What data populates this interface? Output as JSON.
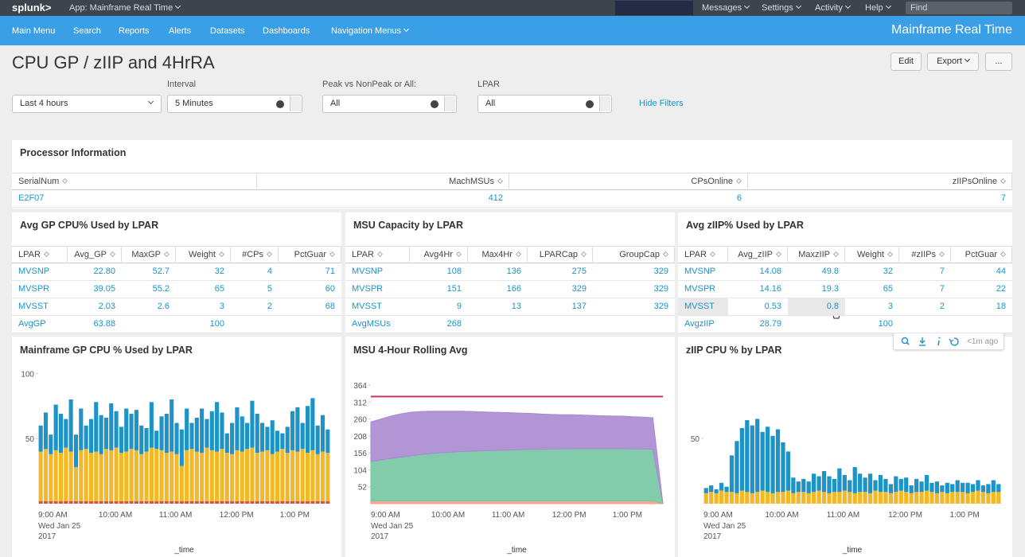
{
  "topbar": {
    "logo": "splunk>",
    "app": "App: Mainframe Real Time",
    "menus": [
      "Messages",
      "Settings",
      "Activity",
      "Help"
    ],
    "search_placeholder": "Find"
  },
  "navbar": {
    "items": [
      "Main Menu",
      "Search",
      "Reports",
      "Alerts",
      "Datasets",
      "Dashboards",
      "Navigation Menus"
    ],
    "app_title": "Mainframe Real Time"
  },
  "header": {
    "title": "CPU GP / zIIP and 4HrRA",
    "buttons": [
      "Edit",
      "Export",
      "..."
    ]
  },
  "filters": {
    "inputs": [
      {
        "value": "Last 4 hours"
      },
      {
        "label": "Interval",
        "value": "5 Minutes"
      },
      {
        "label": "Peak vs NonPeak or All:",
        "value": "All"
      },
      {
        "label": "LPAR",
        "value": "All"
      }
    ],
    "hide": "Hide Filters"
  },
  "processor_info": {
    "title": "Processor Information",
    "columns": [
      "SerialNum",
      "MachMSUs",
      "CPsOnline",
      "zIIPsOnline"
    ],
    "rows": [
      [
        "E2F07",
        "412",
        "6",
        "7"
      ]
    ]
  },
  "tables": [
    {
      "title": "Avg GP CPU% Used by LPAR",
      "columns": [
        "LPAR",
        "Avg_GP",
        "MaxGP",
        "Weight",
        "#CPs",
        "PctGuar"
      ],
      "rows": [
        [
          "MVSNP",
          "22.80",
          "52.7",
          "32",
          "4",
          "71"
        ],
        [
          "MVSPR",
          "39.05",
          "55.2",
          "65",
          "5",
          "60"
        ],
        [
          "MVSST",
          "2.03",
          "2.6",
          "3",
          "2",
          "68"
        ],
        [
          "AvgGP",
          "63.88",
          null,
          "100",
          null,
          null
        ]
      ]
    },
    {
      "title": "MSU Capacity by LPAR",
      "columns": [
        "LPAR",
        "Avg4Hr",
        "Max4Hr",
        "LPARCap",
        "GroupCap"
      ],
      "rows": [
        [
          "MVSNP",
          "108",
          "136",
          "275",
          "329"
        ],
        [
          "MVSPR",
          "151",
          "166",
          "329",
          "329"
        ],
        [
          "MVSST",
          "9",
          "13",
          "137",
          "329"
        ],
        [
          "AvgMSUs",
          "268",
          null,
          null,
          null
        ]
      ]
    },
    {
      "title": "Avg zIIP% Used by LPAR",
      "columns": [
        "LPAR",
        "Avg_zIIP",
        "MaxzIIP",
        "Weight",
        "#zIIPs",
        "PctGuar"
      ],
      "rows": [
        [
          "MVSNP",
          "14.08",
          "49.8",
          "32",
          "7",
          "44"
        ],
        [
          "MVSPR",
          "14.16",
          "19.3",
          "65",
          "7",
          "22"
        ],
        [
          "MVSST",
          "0.53",
          "0.8",
          "3",
          "2",
          "18"
        ],
        [
          "AvgzIIP",
          "28.79",
          null,
          "100",
          null,
          null
        ]
      ]
    }
  ],
  "table_toolbar": {
    "age": "<1m ago"
  },
  "chart_data": [
    {
      "type": "bar",
      "stacked": true,
      "title": "Mainframe GP CPU % Used by LPAR",
      "x_label": "_time",
      "categories": [
        "9:00 AM",
        null,
        null,
        null,
        null,
        null,
        null,
        null,
        null,
        null,
        null,
        null,
        "10:00 AM",
        null,
        null,
        null,
        null,
        null,
        null,
        null,
        null,
        null,
        null,
        null,
        "11:00 AM",
        null,
        null,
        null,
        null,
        null,
        null,
        null,
        null,
        null,
        null,
        null,
        "12:00 PM",
        null,
        null,
        null,
        null,
        null,
        null,
        null,
        null,
        null,
        null,
        null,
        "1:00 PM",
        null,
        null,
        null,
        null,
        null,
        null,
        null,
        null,
        null
      ],
      "x_sublabel": [
        "Wed Jan 25",
        "2017"
      ],
      "series": [
        {
          "color": "#d6563c",
          "values": [
            2,
            2,
            2,
            2,
            2,
            2,
            2,
            2,
            2,
            2,
            2,
            2,
            2,
            2,
            2,
            2,
            2,
            2,
            2,
            2,
            2,
            2,
            2,
            2,
            2,
            2,
            2,
            2,
            2,
            2,
            2,
            2,
            2,
            2,
            2,
            2,
            2,
            2,
            2,
            2,
            2,
            2,
            2,
            2,
            2,
            2,
            2,
            2,
            2,
            2,
            2,
            2,
            2,
            2,
            2,
            2,
            2,
            2
          ]
        },
        {
          "color": "#f2b827",
          "values": [
            38,
            40,
            36,
            39,
            37,
            41,
            38,
            26,
            39,
            40,
            37,
            38,
            36,
            40,
            39,
            41,
            37,
            38,
            40,
            39,
            36,
            38,
            41,
            40,
            39,
            37,
            38,
            36,
            27,
            39,
            40,
            38,
            37,
            41,
            39,
            38,
            40,
            37,
            36,
            39,
            38,
            40,
            41,
            37,
            38,
            39,
            36,
            38,
            40,
            37,
            39,
            38,
            40,
            37,
            39,
            36,
            38,
            37
          ]
        },
        {
          "color": "#1e93c6",
          "values": [
            20,
            28,
            15,
            35,
            30,
            22,
            40,
            25,
            32,
            18,
            26,
            38,
            30,
            24,
            36,
            28,
            20,
            33,
            27,
            31,
            22,
            18,
            35,
            14,
            26,
            30,
            40,
            24,
            28,
            32,
            20,
            26,
            34,
            22,
            30,
            38,
            28,
            15,
            24,
            33,
            27,
            20,
            36,
            30,
            22,
            18,
            26,
            16,
            12,
            20,
            30,
            34,
            20,
            36,
            40,
            22,
            28,
            18
          ]
        }
      ],
      "ylim": [
        0,
        102
      ],
      "yticks": [
        50,
        100
      ]
    },
    {
      "type": "area",
      "stacked": true,
      "title": "MSU 4-Hour Rolling Avg",
      "x_label": "_time",
      "categories": [
        "9:00 AM",
        null,
        null,
        null,
        null,
        null,
        "10:00 AM",
        null,
        null,
        null,
        null,
        null,
        "11:00 AM",
        null,
        null,
        null,
        null,
        null,
        "12:00 PM",
        null,
        null,
        null,
        null,
        null,
        "1:00 PM",
        null,
        null,
        null,
        null,
        null
      ],
      "x_sublabel": [
        "Wed Jan 25",
        "2017"
      ],
      "series": [
        {
          "color": "#f0a08a",
          "values": [
            9,
            9,
            9,
            9,
            9,
            9,
            9,
            9,
            9,
            9,
            9,
            9,
            9,
            9,
            9,
            9,
            9,
            9,
            9,
            9,
            9,
            9,
            9,
            9,
            9,
            9,
            9,
            9,
            9,
            0
          ]
        },
        {
          "color": "#74c7a2",
          "values": [
            120,
            125,
            130,
            134,
            138,
            142,
            145,
            147,
            149,
            151,
            152,
            153,
            154,
            155,
            156,
            157,
            158,
            158,
            159,
            159,
            160,
            160,
            160,
            160,
            160,
            160,
            159,
            159,
            158,
            0
          ]
        },
        {
          "color": "#a98ad0",
          "values": [
            122,
            126,
            130,
            133,
            134,
            132,
            130,
            128,
            126,
            124,
            122,
            120,
            118,
            116,
            114,
            112,
            110,
            108,
            106,
            105,
            104,
            103,
            102,
            101,
            100,
            100,
            99,
            98,
            97,
            0
          ]
        }
      ],
      "lines": [
        {
          "color": "#c3346b",
          "values": [
            329,
            329,
            329,
            329,
            329,
            329,
            329,
            329,
            329,
            329,
            329,
            329,
            329,
            329,
            329,
            329,
            329,
            329,
            329,
            329,
            329,
            329,
            329,
            329,
            329,
            329,
            329,
            329,
            329,
            329
          ]
        }
      ],
      "ylim": [
        0,
        364
      ],
      "yticks": [
        52,
        104,
        156,
        208,
        260,
        312,
        364
      ]
    },
    {
      "type": "bar",
      "stacked": true,
      "title": "zIIP CPU % by LPAR",
      "x_label": "_time",
      "categories": [
        "9:00 AM",
        null,
        null,
        null,
        null,
        null,
        null,
        null,
        null,
        null,
        null,
        null,
        "10:00 AM",
        null,
        null,
        null,
        null,
        null,
        null,
        null,
        null,
        null,
        null,
        null,
        "11:00 AM",
        null,
        null,
        null,
        null,
        null,
        null,
        null,
        null,
        null,
        null,
        null,
        "12:00 PM",
        null,
        null,
        null,
        null,
        null,
        null,
        null,
        null,
        null,
        null,
        null,
        "1:00 PM",
        null,
        null,
        null,
        null,
        null,
        null,
        null,
        null,
        null
      ],
      "x_sublabel": [
        "Wed Jan 25",
        "2017"
      ],
      "series": [
        {
          "color": "#f2b827",
          "values": [
            8,
            9,
            8,
            10,
            9,
            9,
            8,
            10,
            9,
            8,
            9,
            10,
            9,
            8,
            9,
            9,
            10,
            8,
            9,
            9,
            8,
            9,
            10,
            9,
            8,
            9,
            9,
            10,
            9,
            8,
            9,
            9,
            8,
            10,
            9,
            9,
            8,
            9,
            10,
            9,
            8,
            9,
            9,
            10,
            9,
            8,
            9,
            8,
            9,
            9,
            9,
            8,
            9,
            10,
            9,
            8,
            9,
            9
          ]
        },
        {
          "color": "#1e93c6",
          "values": [
            4,
            5,
            3,
            6,
            4,
            28,
            40,
            48,
            55,
            52,
            56,
            45,
            50,
            44,
            48,
            38,
            30,
            12,
            8,
            10,
            9,
            14,
            11,
            16,
            13,
            10,
            18,
            12,
            9,
            20,
            14,
            11,
            15,
            8,
            13,
            10,
            7,
            12,
            9,
            11,
            6,
            10,
            8,
            12,
            7,
            9,
            5,
            8,
            6,
            9,
            7,
            8,
            6,
            8,
            5,
            7,
            9,
            6
          ]
        }
      ],
      "ylim": [
        0,
        100
      ],
      "yticks": [
        50
      ]
    }
  ]
}
